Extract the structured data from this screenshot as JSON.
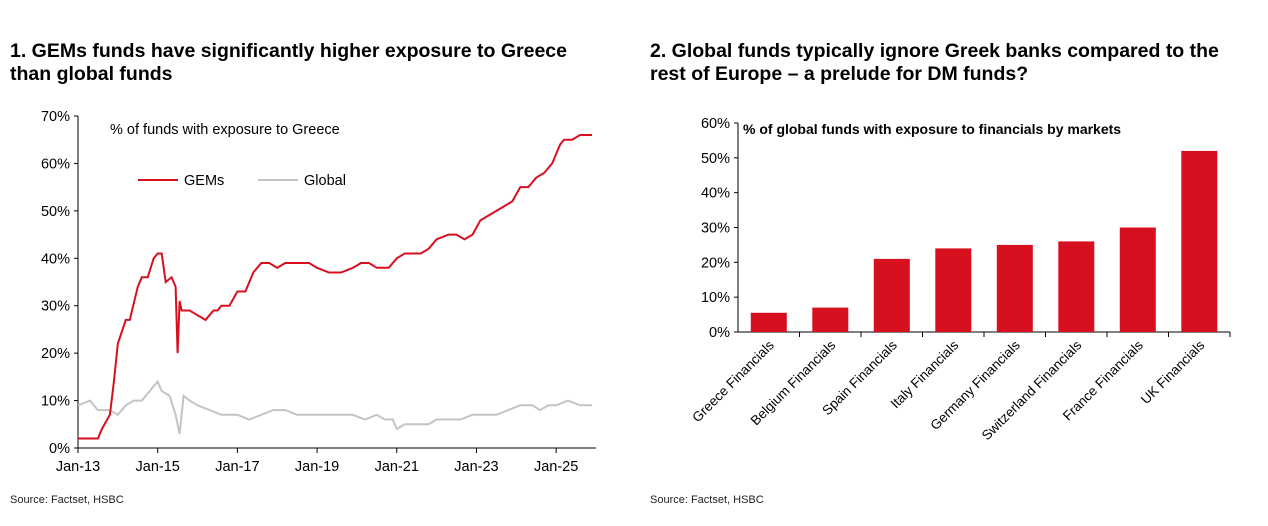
{
  "panels": [
    {
      "title": "1. GEMs funds have significantly higher exposure to Greece than global funds",
      "source": "Source: Factset, HSBC"
    },
    {
      "title": "2. Global funds typically ignore Greek banks compared to the rest of Europe – a prelude for DM funds?",
      "source": "Source: Factset, HSBC"
    }
  ],
  "colors": {
    "gems": "#d7101f",
    "global": "#c4c4c4",
    "bar": "#d7101f",
    "axis": "#000000"
  },
  "chart_data": [
    {
      "type": "line",
      "title": "% of funds with exposure to Greece",
      "xlabel": "",
      "ylabel": "",
      "xlim": [
        2013.0,
        2026.0
      ],
      "ylim": [
        0,
        70
      ],
      "yticks": [
        "0%",
        "10%",
        "20%",
        "30%",
        "40%",
        "50%",
        "60%",
        "70%"
      ],
      "xticks": [
        "Jan-13",
        "Jan-15",
        "Jan-17",
        "Jan-19",
        "Jan-21",
        "Jan-23",
        "Jan-25"
      ],
      "xtick_values": [
        2013,
        2015,
        2017,
        2019,
        2021,
        2023,
        2025
      ],
      "legend": "top-left",
      "series": [
        {
          "name": "GEMs",
          "x": [
            2013.0,
            2013.3,
            2013.5,
            2013.6,
            2013.8,
            2013.9,
            2014.0,
            2014.2,
            2014.3,
            2014.5,
            2014.6,
            2014.75,
            2014.9,
            2015.0,
            2015.1,
            2015.2,
            2015.35,
            2015.45,
            2015.5,
            2015.55,
            2015.6,
            2015.8,
            2016.0,
            2016.2,
            2016.4,
            2016.5,
            2016.6,
            2016.8,
            2017.0,
            2017.2,
            2017.4,
            2017.6,
            2017.8,
            2018.0,
            2018.2,
            2018.5,
            2018.8,
            2019.0,
            2019.3,
            2019.6,
            2019.9,
            2020.1,
            2020.3,
            2020.5,
            2020.6,
            2020.8,
            2021.0,
            2021.2,
            2021.4,
            2021.6,
            2021.8,
            2022.0,
            2022.3,
            2022.5,
            2022.7,
            2022.9,
            2023.1,
            2023.3,
            2023.5,
            2023.7,
            2023.9,
            2024.1,
            2024.3,
            2024.5,
            2024.7,
            2024.9,
            2025.1,
            2025.2,
            2025.4,
            2025.6,
            2025.9
          ],
          "y": [
            2,
            2,
            2,
            4,
            7,
            14,
            22,
            27,
            27,
            34,
            36,
            36,
            40,
            41,
            41,
            35,
            36,
            34,
            20,
            31,
            29,
            29,
            28,
            27,
            29,
            29,
            30,
            30,
            33,
            33,
            37,
            39,
            39,
            38,
            39,
            39,
            39,
            38,
            37,
            37,
            38,
            39,
            39,
            38,
            38,
            38,
            40,
            41,
            41,
            41,
            42,
            44,
            45,
            45,
            44,
            45,
            48,
            49,
            50,
            51,
            52,
            55,
            55,
            57,
            58,
            60,
            64,
            65,
            65,
            66,
            66
          ]
        },
        {
          "name": "Global",
          "x": [
            2013.0,
            2013.3,
            2013.5,
            2013.8,
            2014.0,
            2014.2,
            2014.4,
            2014.6,
            2014.8,
            2014.9,
            2015.0,
            2015.1,
            2015.3,
            2015.45,
            2015.55,
            2015.65,
            2015.8,
            2016.0,
            2016.3,
            2016.6,
            2017.0,
            2017.3,
            2017.6,
            2017.9,
            2018.2,
            2018.5,
            2018.8,
            2019.0,
            2019.3,
            2019.6,
            2019.9,
            2020.2,
            2020.5,
            2020.7,
            2020.9,
            2021.0,
            2021.2,
            2021.4,
            2021.6,
            2021.8,
            2022.0,
            2022.3,
            2022.6,
            2022.9,
            2023.2,
            2023.5,
            2023.8,
            2024.1,
            2024.4,
            2024.6,
            2024.8,
            2025.0,
            2025.3,
            2025.6,
            2025.9
          ],
          "y": [
            9,
            10,
            8,
            8,
            7,
            9,
            10,
            10,
            12,
            13,
            14,
            12,
            11,
            7,
            3,
            11,
            10,
            9,
            8,
            7,
            7,
            6,
            7,
            8,
            8,
            7,
            7,
            7,
            7,
            7,
            7,
            6,
            7,
            6,
            6,
            4,
            5,
            5,
            5,
            5,
            6,
            6,
            6,
            7,
            7,
            7,
            8,
            9,
            9,
            8,
            9,
            9,
            10,
            9,
            9
          ]
        }
      ]
    },
    {
      "type": "bar",
      "title": "% of global funds with exposure to financials by markets",
      "xlabel": "",
      "ylabel": "",
      "ylim": [
        0,
        60
      ],
      "yticks": [
        "0%",
        "10%",
        "20%",
        "30%",
        "40%",
        "50%",
        "60%"
      ],
      "categories": [
        "Greece Financials",
        "Belgium Financials",
        "Spain Financials",
        "Italy Financials",
        "Germany Financials",
        "Switzerland Financials",
        "France Financials",
        "UK Financials"
      ],
      "values": [
        5.5,
        7.0,
        21.0,
        24.0,
        25.0,
        26.0,
        30.0,
        52.0
      ]
    }
  ]
}
